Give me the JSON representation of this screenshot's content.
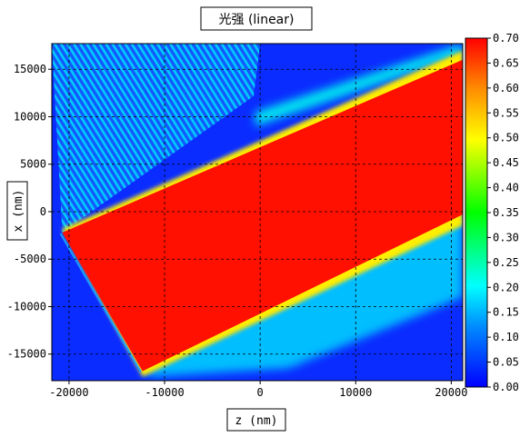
{
  "chart_data": {
    "type": "heatmap",
    "title": "光强 (linear)",
    "xlabel": "z (nm)",
    "ylabel": "x (nm)",
    "xlim": [
      -21800,
      21200
    ],
    "ylim": [
      -17800,
      17700
    ],
    "x_ticks": [
      -20000,
      -10000,
      0,
      10000,
      20000
    ],
    "x_tick_labels": [
      "-20000",
      "-10000",
      "0",
      "10000",
      "20000"
    ],
    "y_ticks": [
      -15000,
      -10000,
      -5000,
      0,
      5000,
      10000,
      15000
    ],
    "y_tick_labels": [
      "-15000",
      "-10000",
      "-5000",
      "0",
      "5000",
      "10000",
      "15000"
    ],
    "grid": true,
    "colorbar": {
      "min": 0.0,
      "max": 0.7,
      "ticks": [
        0.0,
        0.05,
        0.1,
        0.15,
        0.2,
        0.25,
        0.3,
        0.35,
        0.4,
        0.45,
        0.5,
        0.55,
        0.6,
        0.65,
        0.7
      ],
      "tick_labels": [
        "0.00",
        "0.05",
        "0.10",
        "0.15",
        "0.20",
        "0.25",
        "0.30",
        "0.35",
        "0.40",
        "0.45",
        "0.50",
        "0.55",
        "0.60",
        "0.65",
        "0.70"
      ],
      "colormap": [
        "#0000ff",
        "#0088ff",
        "#00ffff",
        "#00ff00",
        "#ffff00",
        "#ff8800",
        "#ff0000"
      ]
    },
    "beam": {
      "entry_upper": [
        -20700,
        -2200
      ],
      "entry_lower": [
        -12300,
        -16800
      ],
      "upper_edge_end": [
        21200,
        16000
      ],
      "lower_edge_end": [
        21200,
        -300
      ],
      "peak_intensity": 0.7,
      "background_intensity": 0.02
    }
  }
}
